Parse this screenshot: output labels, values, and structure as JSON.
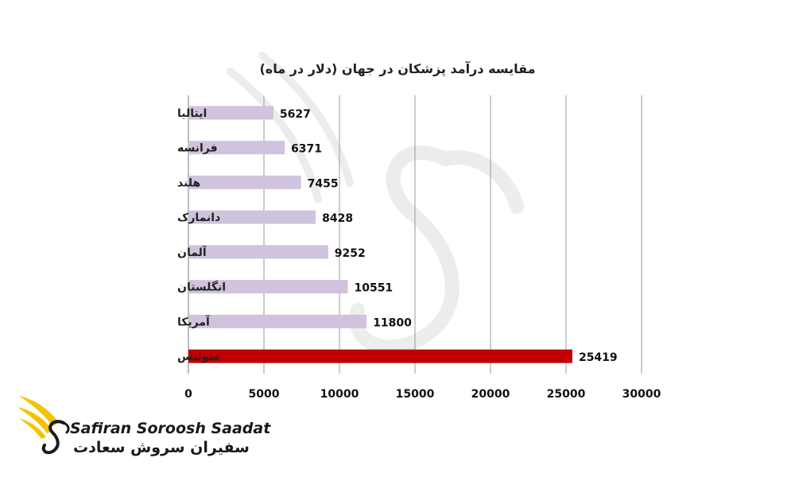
{
  "chart_data": {
    "type": "bar",
    "orientation": "horizontal",
    "title": "مقایسه درآمد پزشکان در جهان (دلار در ماه)",
    "categories": [
      "ایتالیا",
      "فرانسه",
      "هلند",
      "دانمارک",
      "آلمان",
      "انگلستان",
      "آمریکا",
      "سوئیس"
    ],
    "values": [
      5627,
      6371,
      7455,
      8428,
      9252,
      10551,
      11800,
      25419
    ],
    "data_labels": [
      "5627",
      "6371",
      "7455",
      "8428",
      "9252",
      "10551",
      "11800",
      "25419"
    ],
    "highlight_index": 7,
    "xlim": [
      0,
      30000
    ],
    "xticks": [
      0,
      5000,
      10000,
      15000,
      20000,
      25000,
      30000
    ],
    "xtick_labels": [
      "0",
      "5000",
      "10000",
      "15000",
      "20000",
      "25000",
      "30000"
    ],
    "grid": "vertical",
    "legend": "none",
    "colors": {
      "bar": "#cfc3dd",
      "highlight": "#c00000"
    }
  },
  "logo": {
    "brand_en": "Safiran Soroosh Saadat",
    "brand_fa": "سفیران سروش سعادت",
    "colors": {
      "wing": "#f2c400",
      "text": "#1a1a1a"
    }
  }
}
